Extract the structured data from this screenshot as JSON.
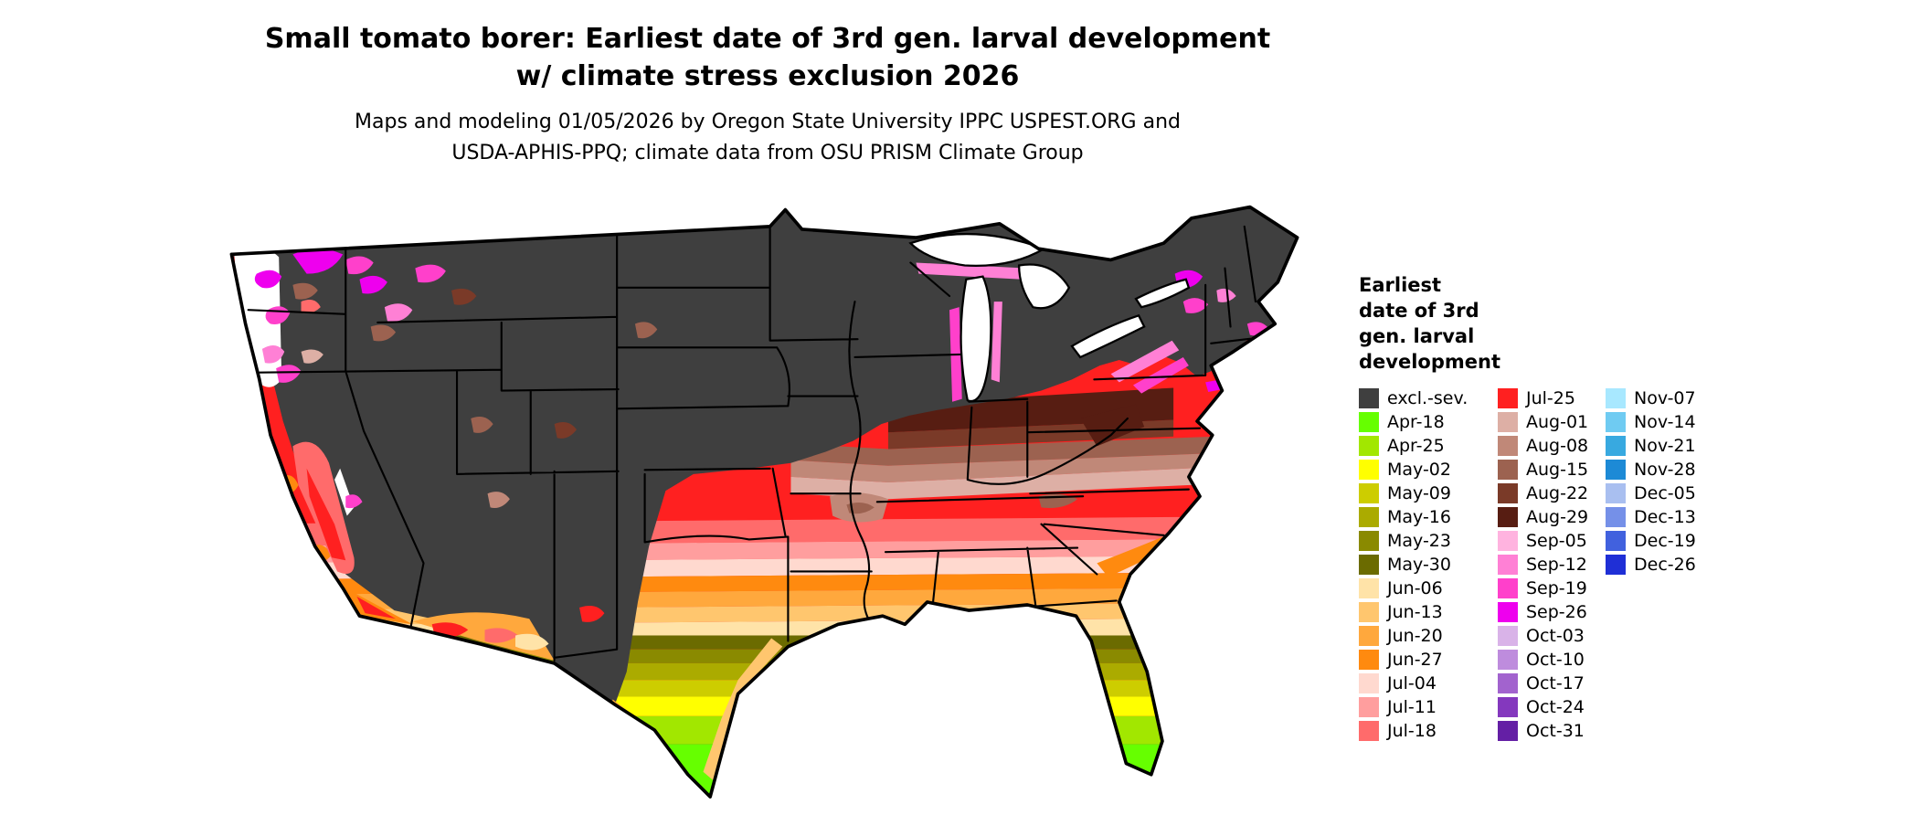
{
  "title": {
    "line1": "Small tomato borer: Earliest date of 3rd gen. larval development",
    "line2": "w/ climate stress exclusion 2026"
  },
  "subtitle": {
    "line1": "Maps and modeling 01/05/2026 by Oregon State University IPPC USPEST.ORG and",
    "line2": "USDA-APHIS-PPQ; climate data from OSU PRISM Climate Group"
  },
  "legend": {
    "title_lines": [
      "Earliest",
      "date of 3rd",
      "gen. larval",
      "development"
    ],
    "columns": [
      [
        {
          "label": "excl.-sev.",
          "color": "#3F3F3F"
        },
        {
          "label": "Apr-18",
          "color": "#66FF00"
        },
        {
          "label": "Apr-25",
          "color": "#A2E700"
        },
        {
          "label": "May-02",
          "color": "#FFFF00"
        },
        {
          "label": "May-09",
          "color": "#CDCD00"
        },
        {
          "label": "May-16",
          "color": "#ABAB00"
        },
        {
          "label": "May-23",
          "color": "#8A8A00"
        },
        {
          "label": "May-30",
          "color": "#6B6B00"
        },
        {
          "label": "Jun-06",
          "color": "#FFE3A8"
        },
        {
          "label": "Jun-13",
          "color": "#FFC66E"
        },
        {
          "label": "Jun-20",
          "color": "#FFA83D"
        },
        {
          "label": "Jun-27",
          "color": "#FF8A0F"
        },
        {
          "label": "Jul-04",
          "color": "#FFD9CF"
        },
        {
          "label": "Jul-11",
          "color": "#FF9E9E"
        },
        {
          "label": "Jul-18",
          "color": "#FF6B6B"
        }
      ],
      [
        {
          "label": "Jul-25",
          "color": "#FF2020"
        },
        {
          "label": "Aug-01",
          "color": "#DDAFA5"
        },
        {
          "label": "Aug-08",
          "color": "#C08878"
        },
        {
          "label": "Aug-15",
          "color": "#9C6250"
        },
        {
          "label": "Aug-22",
          "color": "#7A3A28"
        },
        {
          "label": "Aug-29",
          "color": "#571D12"
        },
        {
          "label": "Sep-05",
          "color": "#FFB3DF"
        },
        {
          "label": "Sep-12",
          "color": "#FF80D5"
        },
        {
          "label": "Sep-19",
          "color": "#FF40CB"
        },
        {
          "label": "Sep-26",
          "color": "#EE00EE"
        },
        {
          "label": "Oct-03",
          "color": "#D9B3E8"
        },
        {
          "label": "Oct-10",
          "color": "#BE8CDD"
        },
        {
          "label": "Oct-17",
          "color": "#A263CE"
        },
        {
          "label": "Oct-24",
          "color": "#8438BE"
        },
        {
          "label": "Oct-31",
          "color": "#641FA5"
        }
      ],
      [
        {
          "label": "Nov-07",
          "color": "#A8E8FF"
        },
        {
          "label": "Nov-14",
          "color": "#6FCBF2"
        },
        {
          "label": "Nov-21",
          "color": "#38A9E0"
        },
        {
          "label": "Nov-28",
          "color": "#1D8AD6"
        },
        {
          "label": "Dec-05",
          "color": "#A9BFF0"
        },
        {
          "label": "Dec-13",
          "color": "#7590E8"
        },
        {
          "label": "Dec-19",
          "color": "#4161DE"
        },
        {
          "label": "Dec-26",
          "color": "#1F2FD6"
        }
      ]
    ]
  }
}
